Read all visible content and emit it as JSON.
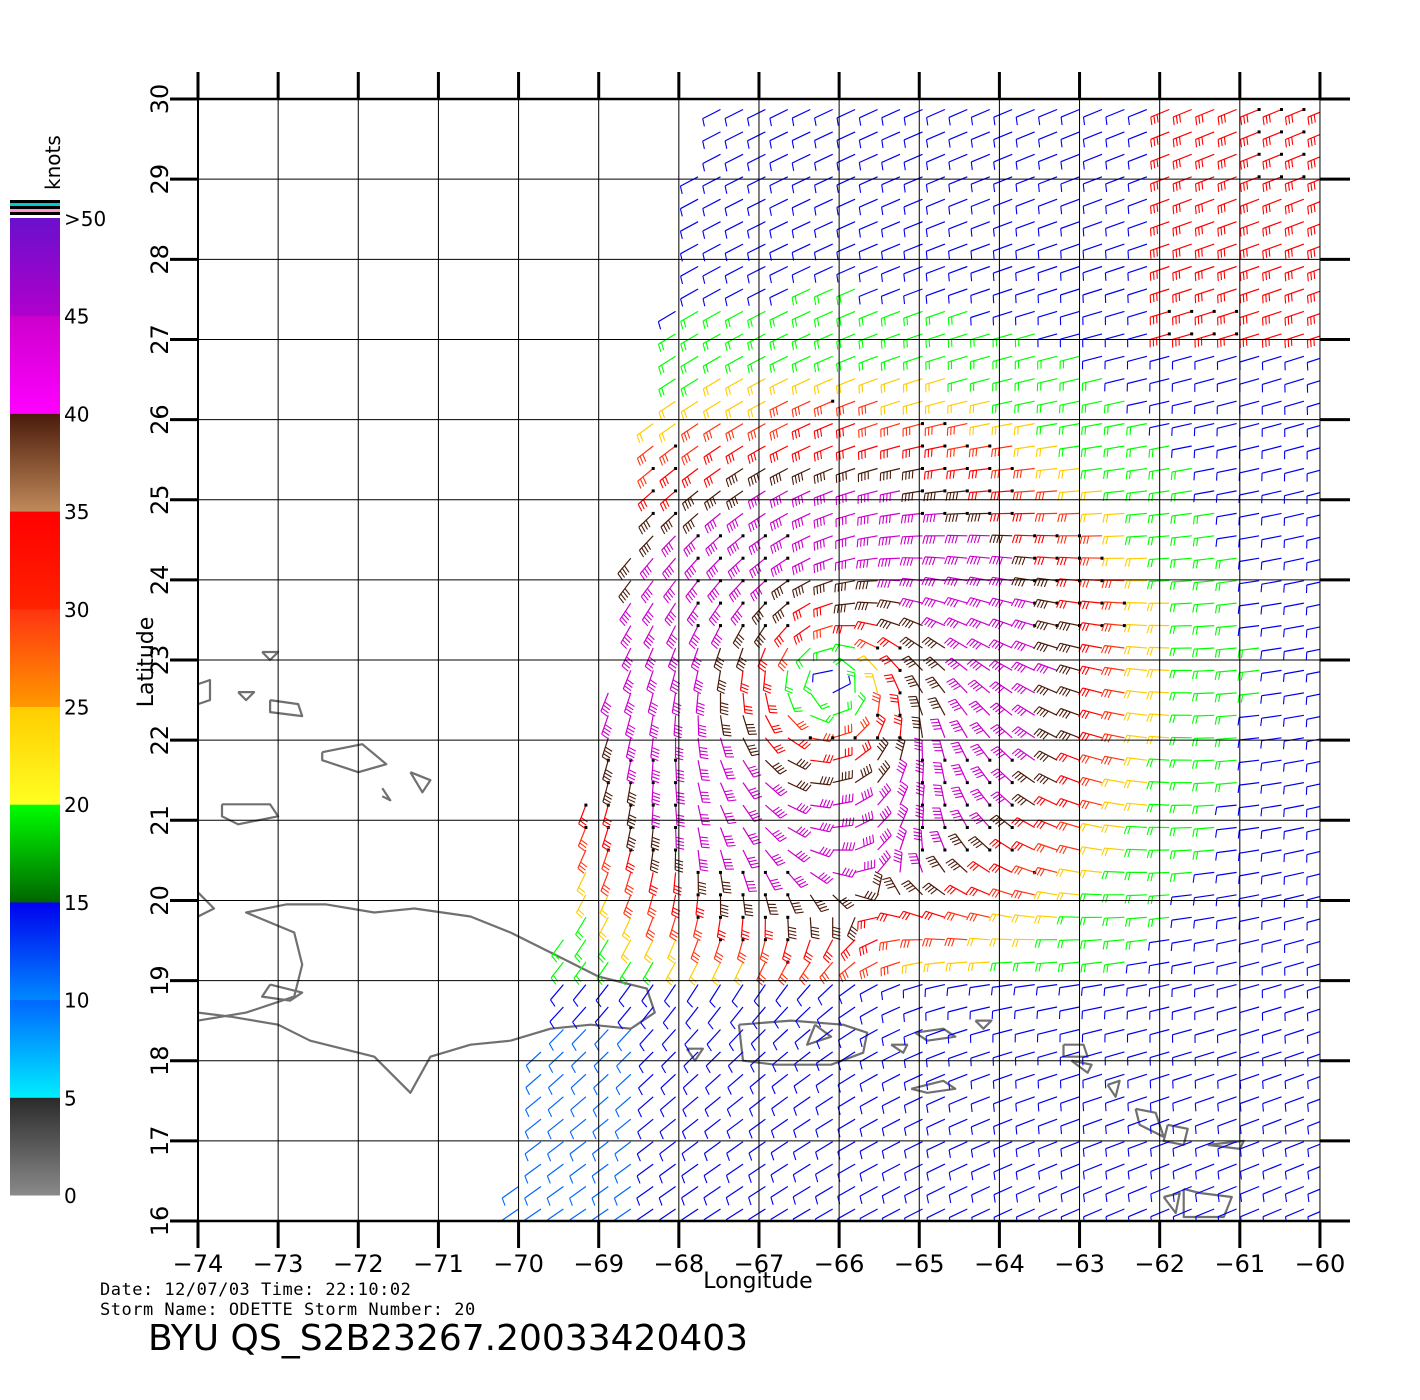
{
  "colorbar": {
    "unit_label": "knots",
    "levels": [
      {
        "label": ">50",
        "value": 50
      },
      {
        "label": "45",
        "value": 45
      },
      {
        "label": "40",
        "value": 40
      },
      {
        "label": "35",
        "value": 35
      },
      {
        "label": "30",
        "value": 30
      },
      {
        "label": "25",
        "value": 25
      },
      {
        "label": "20",
        "value": 20
      },
      {
        "label": "15",
        "value": 15
      },
      {
        "label": "10",
        "value": 10
      },
      {
        "label": "5",
        "value": 5
      },
      {
        "label": "0",
        "value": 0
      }
    ],
    "bands": [
      {
        "from": 0,
        "to": 5,
        "top": "#2a2a2a",
        "bottom": "#8a8a8a"
      },
      {
        "from": 5,
        "to": 10,
        "top": "#0066ff",
        "bottom": "#00eeff"
      },
      {
        "from": 10,
        "to": 15,
        "top": "#0000ee",
        "bottom": "#0088ff"
      },
      {
        "from": 15,
        "to": 20,
        "top": "#00ff00",
        "bottom": "#006600"
      },
      {
        "from": 20,
        "to": 25,
        "top": "#ffcc00",
        "bottom": "#ffff22"
      },
      {
        "from": 25,
        "to": 30,
        "top": "#ff3311",
        "bottom": "#ff9900"
      },
      {
        "from": 30,
        "to": 35,
        "top": "#ff0000",
        "bottom": "#ff2200"
      },
      {
        "from": 35,
        "to": 40,
        "top": "#4a1a0a",
        "bottom": "#c08a5a"
      },
      {
        "from": 40,
        "to": 45,
        "top": "#cc00cc",
        "bottom": "#ff00ff"
      },
      {
        "from": 45,
        "to": 50,
        "top": "#6a10cc",
        "bottom": "#b000cc"
      }
    ]
  },
  "axes": {
    "x_label": "Longitude",
    "y_label": "Latitude",
    "x_ticks": [
      "-74",
      "-73",
      "-72",
      "-71",
      "-70",
      "-69",
      "-68",
      "-67",
      "-66",
      "-65",
      "-64",
      "-63",
      "-62",
      "-61",
      "-60"
    ],
    "y_ticks": [
      "16",
      "17",
      "18",
      "19",
      "20",
      "21",
      "22",
      "23",
      "24",
      "25",
      "26",
      "27",
      "28",
      "29",
      "30"
    ],
    "x_range": [
      -74,
      -60
    ],
    "y_range": [
      16,
      30
    ],
    "grid": true
  },
  "storm": {
    "name": "ODETTE",
    "center_lon": -66.1,
    "center_lat": 22.7
  },
  "swath": {
    "corners": [
      [
        -67.6,
        30
      ],
      [
        -59.8,
        30
      ],
      [
        -59.8,
        16
      ],
      [
        -70.1,
        16
      ]
    ],
    "low_wind_region": "south of 19N"
  },
  "footer": {
    "line1": "Date: 12/07/03   Time: 22:10:02",
    "line2": "Storm Name: ODETTE   Storm Number: 20",
    "product_id": "BYU QS_S2B23267.20033420403"
  },
  "colors": {
    "grid": "#000000",
    "coastline": "#707070",
    "rain_flag": "#000000"
  }
}
